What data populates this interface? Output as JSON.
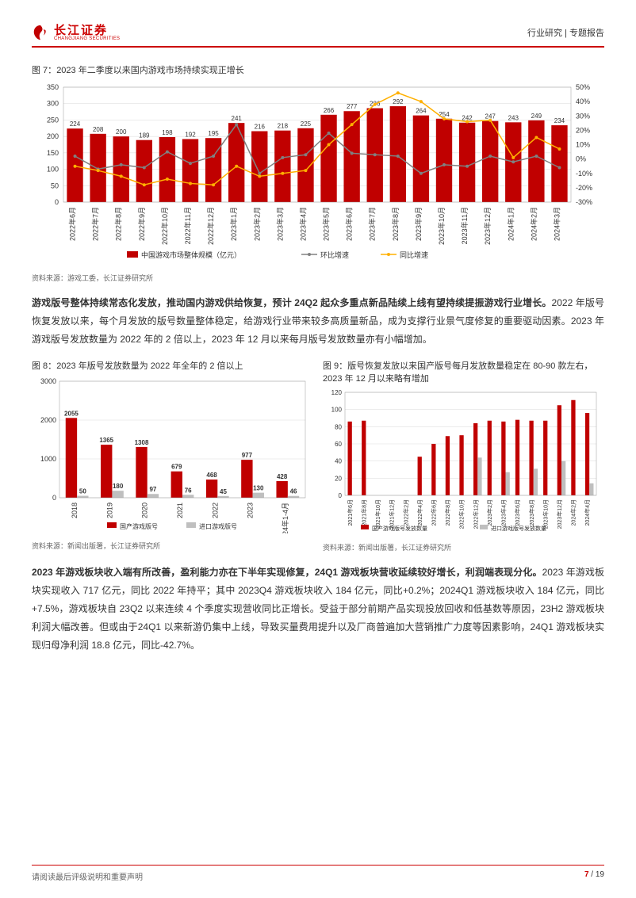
{
  "header": {
    "logo_cn": "长江证券",
    "logo_en": "CHANGJIANG SECURITIES",
    "right": "行业研究 | 专题报告"
  },
  "chart7": {
    "type": "bar+line",
    "title_prefix": "图 7：",
    "title": "2023 年二季度以来国内游戏市场持续实现正增长",
    "categories": [
      "2022年6月",
      "2022年7月",
      "2022年8月",
      "2022年9月",
      "2022年10月",
      "2022年11月",
      "2022年12月",
      "2023年1月",
      "2023年2月",
      "2023年3月",
      "2023年4月",
      "2023年5月",
      "2023年6月",
      "2023年7月",
      "2023年8月",
      "2023年9月",
      "2023年10月",
      "2023年11月",
      "2023年12月",
      "2024年1月",
      "2024年2月",
      "2024年3月"
    ],
    "bar_values": [
      224,
      208,
      200,
      189,
      198,
      192,
      195,
      241,
      216,
      218,
      225,
      266,
      277,
      286,
      292,
      264,
      254,
      242,
      247,
      243,
      249,
      234
    ],
    "bar_color": "#c00000",
    "left_ylim": [
      0,
      350
    ],
    "left_ytick_step": 50,
    "right_ylim": [
      -30,
      50
    ],
    "right_ytick_step": 10,
    "line1_name": "环比增速",
    "line1_color": "#808080",
    "line1_values": [
      2,
      -7,
      -4,
      -6,
      5,
      -3,
      2,
      24,
      -10,
      1,
      3,
      18,
      4,
      3,
      2,
      -10,
      -4,
      -5,
      2,
      -2,
      2,
      -6
    ],
    "line2_name": "同比增速",
    "line2_color": "#ffb000",
    "line2_values": [
      -5,
      -8,
      -12,
      -18,
      -14,
      -17,
      -18,
      -5,
      -12,
      -10,
      -8,
      10,
      24,
      38,
      46,
      40,
      28,
      26,
      27,
      1,
      15,
      7
    ],
    "legend": [
      "中国游戏市场整体规模（亿元）",
      "环比增速",
      "同比增速"
    ],
    "source": "资料来源：游戏工委，长江证券研究所",
    "background_color": "#ffffff",
    "grid_color": "#d9d9d9",
    "label_fontsize": 9,
    "value_fontsize": 8
  },
  "para1_bold": "游戏版号整体持续常态化发放，推动国内游戏供给恢复，预计 24Q2 起众多重点新品陆续上线有望持续提振游戏行业增长。",
  "para1_rest": "2022 年版号恢复发放以来，每个月发放的版号数量整体稳定，给游戏行业带来较多高质量新品，成为支撑行业景气度修复的重要驱动因素。2023 年游戏版号发放数量为 2022 年的 2 倍以上，2023 年 12 月以来每月版号发放数量亦有小幅增加。",
  "chart8": {
    "type": "bar-grouped",
    "title_prefix": "图 8：",
    "title": "2023 年版号发放数量为 2022 年全年的 2 倍以上",
    "categories": [
      "2018",
      "2019",
      "2020",
      "2021",
      "2022",
      "2023",
      "2024年1-4月"
    ],
    "series1_name": "国产游戏版号",
    "series1_color": "#c00000",
    "series1_values": [
      2055,
      1365,
      1308,
      679,
      468,
      977,
      428
    ],
    "series2_name": "进口游戏版号",
    "series2_color": "#bfbfbf",
    "series2_values": [
      50,
      180,
      97,
      76,
      45,
      130,
      46
    ],
    "ylim": [
      0,
      3000
    ],
    "ytick_step": 1000,
    "source": "资料来源：新闻出版署，长江证券研究所",
    "value_fontsize": 8,
    "label_fontsize": 9
  },
  "chart9": {
    "type": "bar-grouped",
    "title_prefix": "图 9：",
    "title": "版号恢复发放以来国产版号每月发放数量稳定在 80-90 款左右，2023 年 12 月以来略有增加",
    "categories": [
      "2021年6月",
      "2021年8月",
      "2021年10月",
      "2021年12月",
      "2022年2月",
      "2022年4月",
      "2022年6月",
      "2022年8月",
      "2022年10月",
      "2022年12月",
      "2023年2月",
      "2023年4月",
      "2023年6月",
      "2023年8月",
      "2023年10月",
      "2023年12月",
      "2024年2月",
      "2024年4月"
    ],
    "series1_name": "国产游戏版号发放数量",
    "series1_color": "#c00000",
    "series1_values": [
      86,
      87,
      0,
      0,
      0,
      45,
      60,
      69,
      70,
      84,
      87,
      86,
      88,
      87,
      87,
      105,
      111,
      96
    ],
    "series2_name": "进口游戏版号发放数量",
    "series2_color": "#bfbfbf",
    "series2_values": [
      0,
      0,
      0,
      0,
      0,
      0,
      0,
      0,
      0,
      44,
      0,
      27,
      0,
      31,
      0,
      40,
      0,
      14
    ],
    "ylim": [
      0,
      120
    ],
    "ytick_step": 20,
    "source": "资料来源：新闻出版署，长江证券研究所",
    "label_fontsize": 7
  },
  "para2_bold": "2023 年游戏板块收入端有所改善，盈利能力亦在下半年实现修复，24Q1 游戏板块营收延续较好增长，利润端表现分化。",
  "para2_rest": "2023 年游戏板块实现收入 717 亿元，同比 2022 年持平；其中 2023Q4 游戏板块收入 184 亿元，同比+0.2%；2024Q1 游戏板块收入 184 亿元，同比+7.5%，游戏板块自 23Q2 以来连续 4 个季度实现营收同比正增长。受益于部分前期产品实现投放回收和低基数等原因，23H2 游戏板块利润大幅改善。但或由于24Q1 以来新游仍集中上线，导致买量费用提升以及厂商普遍加大营销推广力度等因素影响，24Q1 游戏板块实现归母净利润 18.8 亿元，同比-42.7%。",
  "footer": {
    "left": "请阅读最后评级说明和重要声明",
    "page_current": "7",
    "page_total": "19"
  }
}
